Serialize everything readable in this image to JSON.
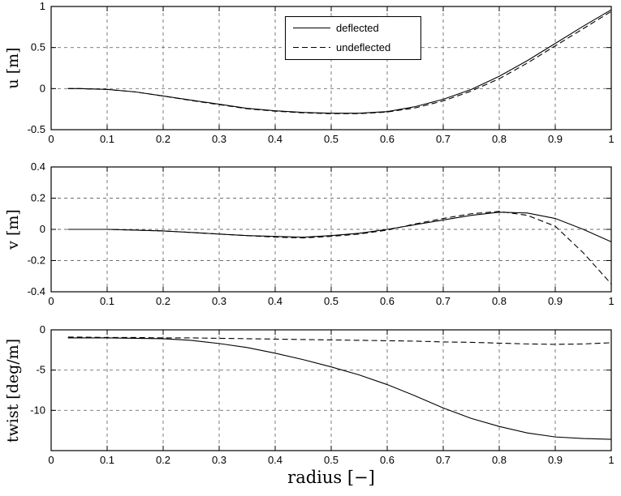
{
  "figure": {
    "xlabel": "radius [−]",
    "background": "#ffffff",
    "line_color": "#000000",
    "grid_color": "#6e6e6e"
  },
  "chart_data": [
    {
      "type": "line",
      "title": "",
      "ylabel": "u [m]",
      "xlabel": "",
      "xlim": [
        0,
        1
      ],
      "ylim": [
        -0.5,
        1
      ],
      "xticks": [
        0,
        0.1,
        0.2,
        0.3,
        0.4,
        0.5,
        0.6,
        0.7,
        0.8,
        0.9,
        1
      ],
      "yticks": [
        -0.5,
        0,
        0.5,
        1
      ],
      "grid": true,
      "legend_position": "top-center",
      "x": [
        0.03,
        0.05,
        0.1,
        0.15,
        0.2,
        0.25,
        0.3,
        0.35,
        0.4,
        0.45,
        0.5,
        0.55,
        0.6,
        0.65,
        0.7,
        0.75,
        0.8,
        0.85,
        0.9,
        0.95,
        1.0
      ],
      "series": [
        {
          "name": "deflected",
          "style": "solid",
          "values": [
            0.0,
            0.0,
            -0.01,
            -0.04,
            -0.09,
            -0.14,
            -0.19,
            -0.24,
            -0.27,
            -0.29,
            -0.3,
            -0.3,
            -0.28,
            -0.22,
            -0.13,
            -0.01,
            0.15,
            0.34,
            0.55,
            0.76,
            0.96
          ]
        },
        {
          "name": "undeflected",
          "style": "dashed",
          "values": [
            0.0,
            0.0,
            -0.01,
            -0.04,
            -0.09,
            -0.145,
            -0.195,
            -0.245,
            -0.275,
            -0.295,
            -0.305,
            -0.305,
            -0.285,
            -0.235,
            -0.15,
            -0.03,
            0.12,
            0.31,
            0.52,
            0.73,
            0.94
          ]
        }
      ]
    },
    {
      "type": "line",
      "title": "",
      "ylabel": "v [m]",
      "xlabel": "",
      "xlim": [
        0,
        1
      ],
      "ylim": [
        -0.4,
        0.4
      ],
      "xticks": [
        0,
        0.1,
        0.2,
        0.3,
        0.4,
        0.5,
        0.6,
        0.7,
        0.8,
        0.9,
        1
      ],
      "yticks": [
        -0.4,
        -0.2,
        0,
        0.2,
        0.4
      ],
      "grid": true,
      "x": [
        0.03,
        0.05,
        0.1,
        0.15,
        0.2,
        0.25,
        0.3,
        0.35,
        0.4,
        0.45,
        0.5,
        0.55,
        0.6,
        0.65,
        0.7,
        0.75,
        0.8,
        0.85,
        0.9,
        0.95,
        1.0
      ],
      "series": [
        {
          "name": "deflected",
          "style": "solid",
          "values": [
            0.0,
            0.0,
            0.0,
            -0.005,
            -0.01,
            -0.02,
            -0.03,
            -0.04,
            -0.045,
            -0.05,
            -0.04,
            -0.025,
            0.0,
            0.03,
            0.06,
            0.09,
            0.11,
            0.105,
            0.07,
            0.0,
            -0.08
          ]
        },
        {
          "name": "undeflected",
          "style": "dashed",
          "values": [
            0.0,
            0.0,
            0.0,
            -0.005,
            -0.01,
            -0.02,
            -0.03,
            -0.04,
            -0.05,
            -0.055,
            -0.045,
            -0.03,
            -0.005,
            0.035,
            0.07,
            0.1,
            0.115,
            0.09,
            0.02,
            -0.15,
            -0.35
          ]
        }
      ]
    },
    {
      "type": "line",
      "title": "",
      "ylabel": "twist [deg/m]",
      "xlabel": "radius [−]",
      "xlim": [
        0,
        1
      ],
      "ylim": [
        -15,
        0
      ],
      "xticks": [
        0,
        0.1,
        0.2,
        0.3,
        0.4,
        0.5,
        0.6,
        0.7,
        0.8,
        0.9,
        1
      ],
      "yticks": [
        0,
        -5,
        -10
      ],
      "grid": true,
      "x": [
        0.03,
        0.05,
        0.1,
        0.15,
        0.2,
        0.25,
        0.3,
        0.35,
        0.4,
        0.45,
        0.5,
        0.55,
        0.6,
        0.65,
        0.7,
        0.75,
        0.8,
        0.85,
        0.9,
        0.95,
        1.0
      ],
      "series": [
        {
          "name": "deflected",
          "style": "solid",
          "values": [
            -1.0,
            -1.0,
            -1.0,
            -1.05,
            -1.1,
            -1.3,
            -1.7,
            -2.2,
            -2.9,
            -3.7,
            -4.6,
            -5.6,
            -6.8,
            -8.2,
            -9.7,
            -11.0,
            -12.0,
            -12.8,
            -13.3,
            -13.5,
            -13.6
          ]
        },
        {
          "name": "undeflected",
          "style": "dashed",
          "values": [
            -0.9,
            -0.9,
            -0.95,
            -0.95,
            -1.0,
            -1.0,
            -1.05,
            -1.1,
            -1.15,
            -1.2,
            -1.25,
            -1.3,
            -1.35,
            -1.4,
            -1.5,
            -1.55,
            -1.65,
            -1.75,
            -1.8,
            -1.75,
            -1.6
          ]
        }
      ]
    }
  ]
}
